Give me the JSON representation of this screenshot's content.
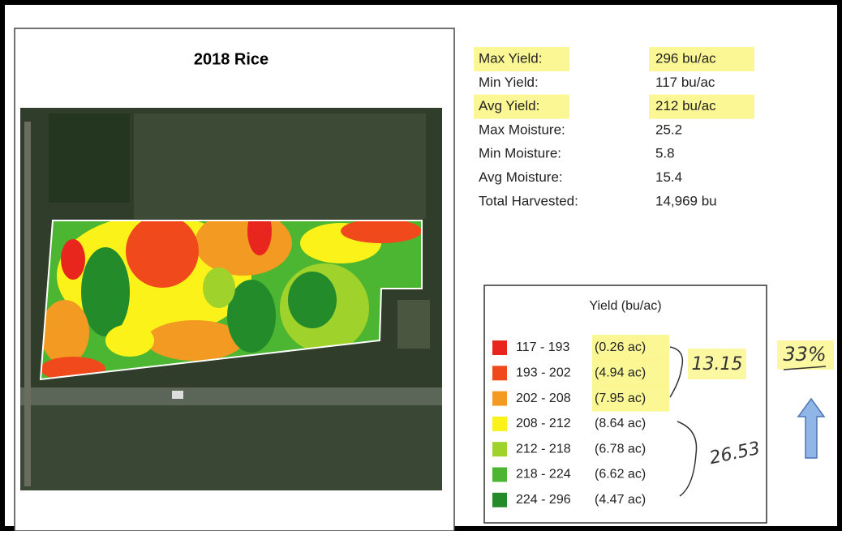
{
  "title": "2018 Rice",
  "stats": [
    {
      "label": "Max Yield:",
      "value": "296 bu/ac",
      "highlighted": true
    },
    {
      "label": "Min Yield:",
      "value": "117 bu/ac",
      "highlighted": false
    },
    {
      "label": "Avg Yield:",
      "value": "212 bu/ac",
      "highlighted": true
    },
    {
      "label": "Max Moisture:",
      "value": "25.2",
      "highlighted": false
    },
    {
      "label": "Min Moisture:",
      "value": "5.8",
      "highlighted": false
    },
    {
      "label": "Avg Moisture:",
      "value": "15.4",
      "highlighted": false
    },
    {
      "label": "Total Harvested:",
      "value": "14,969 bu",
      "highlighted": false
    }
  ],
  "legend": {
    "title": "Yield (bu/ac)",
    "items": [
      {
        "range": "117 - 193",
        "acres": "(0.26 ac)",
        "color": "#e8261e",
        "highlighted": true
      },
      {
        "range": "193 - 202",
        "acres": "(4.94 ac)",
        "color": "#f04a1c",
        "highlighted": true
      },
      {
        "range": "202 - 208",
        "acres": "(7.95 ac)",
        "color": "#f39a22",
        "highlighted": true
      },
      {
        "range": "208 - 212",
        "acres": "(8.64 ac)",
        "color": "#fbf21a",
        "highlighted": false
      },
      {
        "range": "212 - 218",
        "acres": "(6.78 ac)",
        "color": "#9fd22a",
        "highlighted": false
      },
      {
        "range": "218 - 224",
        "acres": "(6.62 ac)",
        "color": "#4cb531",
        "highlighted": false
      },
      {
        "range": "224 - 296",
        "acres": "(4.47 ac)",
        "color": "#238b2a",
        "highlighted": false
      }
    ]
  },
  "annotations": {
    "upper_sum": "13.15",
    "lower_sum": "26.53",
    "percent": "33%"
  }
}
